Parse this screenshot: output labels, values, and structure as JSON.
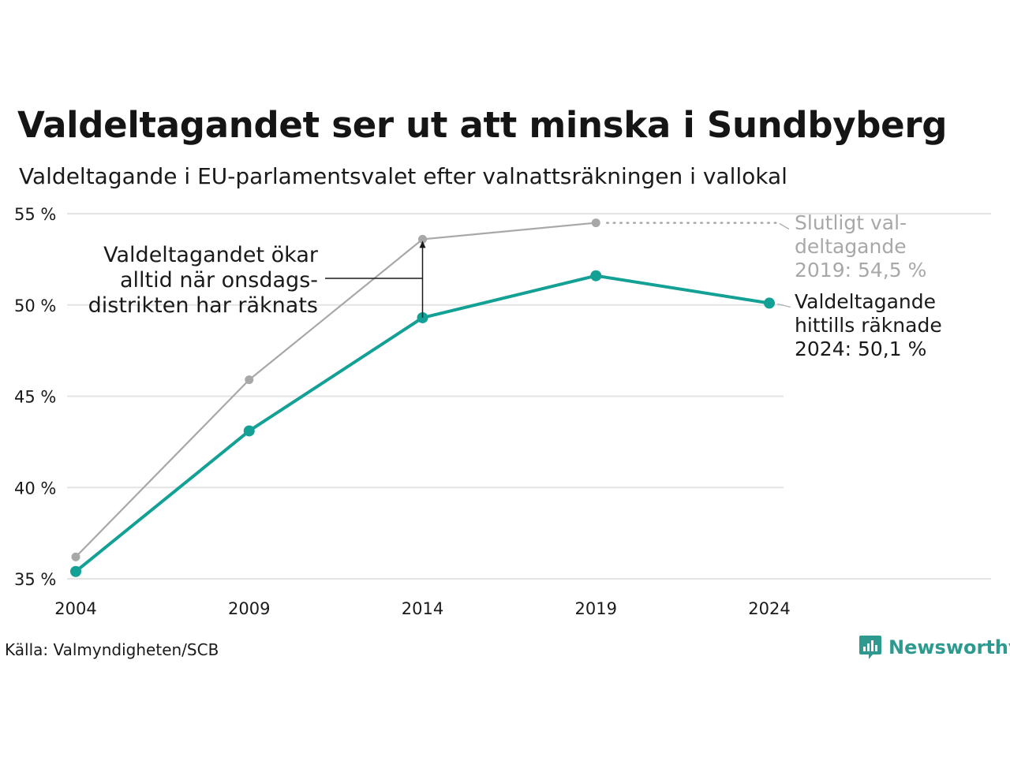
{
  "header": {
    "title": "Valdeltagandet ser ut att minska i Sundbyberg",
    "subtitle": "Valdeltagande i EU-parlamentsvalet efter valnattsräkningen i vallokal"
  },
  "footer": {
    "source": "Källa: Valmyndigheten/SCB",
    "brand": "Newsworthy",
    "brand_icon": "newsworthy-logo-icon",
    "brand_color": "#2e9a8f"
  },
  "chart_data": {
    "type": "line",
    "x": [
      "2004",
      "2009",
      "2014",
      "2019",
      "2024"
    ],
    "series": [
      {
        "name": "Slutligt valdeltagande",
        "color": "#a8a8a8",
        "values": [
          36.2,
          45.9,
          53.6,
          54.5,
          null
        ]
      },
      {
        "name": "Valdeltagande hittills räknade",
        "color": "#13a095",
        "values": [
          35.4,
          43.1,
          49.3,
          51.6,
          50.1
        ]
      }
    ],
    "ylim": [
      35,
      55
    ],
    "yticks": [
      "35 %",
      "40 %",
      "45 %",
      "50 %",
      "55 %"
    ],
    "grid": true,
    "annotations": {
      "arrow_text": [
        "Valdeltagandet ökar",
        "alltid när onsdags-",
        "distrikten har räknats"
      ],
      "final_label": [
        "Slutligt val-",
        "deltagande",
        "2019: 54,5 %"
      ],
      "current_label": [
        "Valdeltagande",
        "hittills räknade",
        "2024: 50,1 %"
      ]
    }
  }
}
